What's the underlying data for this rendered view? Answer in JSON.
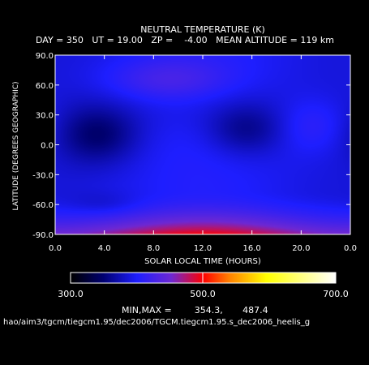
{
  "chart_data": {
    "type": "heatmap",
    "title": "NEUTRAL TEMPERATURE (K)",
    "subtitle": "DAY = 350   UT = 19.00   ZP =    -4.00   MEAN ALTITUDE = 119 km",
    "xlabel": "SOLAR LOCAL TIME (HOURS)",
    "ylabel": "LATITUDE (DEGREES GEOGRAPHIC)",
    "x_ticks": [
      "0.0",
      "4.0",
      "8.0",
      "12.0",
      "16.0",
      "20.0",
      "0.0"
    ],
    "y_ticks": [
      "90.0",
      "60.0",
      "30.0",
      "0.0",
      "-30.0",
      "-60.0",
      "-90.0"
    ],
    "xlim": [
      0,
      24
    ],
    "ylim": [
      -90,
      90
    ],
    "colorbar": {
      "min_label": "300.0",
      "mid_label": "500.0",
      "max_label": "700.0",
      "range": [
        300,
        700
      ]
    },
    "minmax_text": "MIN,MAX =        354.3,       487.4",
    "path_text": "hao/aim3/tgcm/tiegcm1.95/dec2006/TGCM.tiegcm1.95.s_dec2006_heelis_g",
    "min": 354.3,
    "max": 487.4,
    "features": [
      {
        "kind": "min",
        "lt": 3.5,
        "lat": 10,
        "value": 355
      },
      {
        "kind": "min",
        "lt": 15.5,
        "lat": 15,
        "value": 360
      },
      {
        "kind": "min",
        "lt": 4,
        "lat": -60,
        "value": 385
      },
      {
        "kind": "max",
        "lt": 9,
        "lat": 65,
        "value": 430
      },
      {
        "kind": "max",
        "lt": 21,
        "lat": 20,
        "value": 420
      },
      {
        "kind": "max",
        "lt": 12,
        "lat": -85,
        "value": 487
      }
    ]
  },
  "colors": {
    "background": "#000000",
    "text": "#ffffff"
  }
}
